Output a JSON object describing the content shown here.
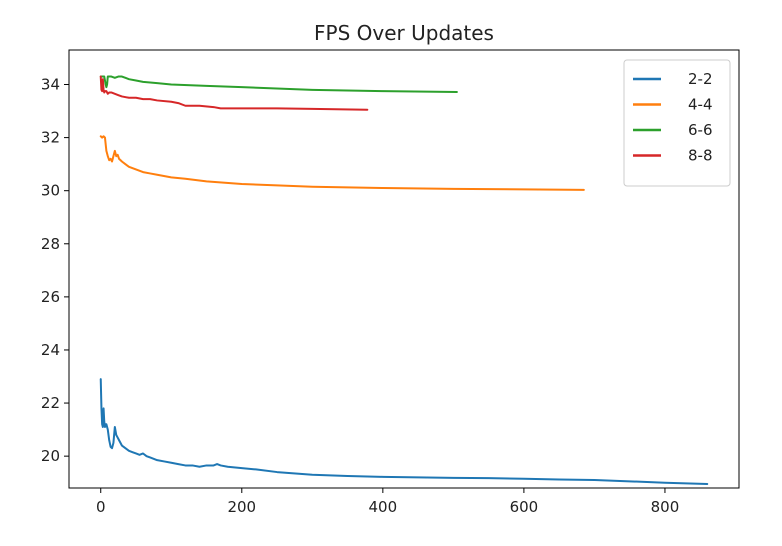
{
  "chart_data": {
    "type": "line",
    "title": "FPS Over Updates",
    "xlabel": "",
    "ylabel": "",
    "xlim": [
      -45,
      905
    ],
    "ylim": [
      18.8,
      35.3
    ],
    "xticks": [
      0,
      200,
      400,
      600,
      800
    ],
    "yticks": [
      20,
      22,
      24,
      26,
      28,
      30,
      32,
      34
    ],
    "grid": false,
    "legend_position": "top-right",
    "series": [
      {
        "name": "2-2",
        "color": "#1f77b4",
        "x": [
          0,
          1,
          2,
          3,
          4,
          5,
          6,
          7,
          8,
          10,
          12,
          14,
          16,
          18,
          20,
          22,
          24,
          26,
          28,
          30,
          35,
          40,
          45,
          50,
          55,
          60,
          65,
          70,
          80,
          90,
          100,
          110,
          120,
          130,
          140,
          150,
          160,
          165,
          170,
          180,
          200,
          220,
          250,
          300,
          350,
          400,
          450,
          500,
          550,
          600,
          650,
          700,
          750,
          800,
          860
        ],
        "y": [
          22.9,
          21.8,
          21.2,
          21.1,
          21.8,
          21.3,
          21.1,
          21.2,
          21.2,
          21.0,
          20.6,
          20.35,
          20.3,
          20.5,
          21.1,
          20.8,
          20.7,
          20.6,
          20.5,
          20.4,
          20.3,
          20.2,
          20.15,
          20.1,
          20.05,
          20.1,
          20.0,
          19.95,
          19.85,
          19.8,
          19.75,
          19.7,
          19.65,
          19.65,
          19.6,
          19.65,
          19.65,
          19.7,
          19.65,
          19.6,
          19.55,
          19.5,
          19.4,
          19.3,
          19.25,
          19.22,
          19.2,
          19.18,
          19.17,
          19.15,
          19.12,
          19.1,
          19.05,
          19.0,
          18.95
        ]
      },
      {
        "name": "4-4",
        "color": "#ff7f0e",
        "x": [
          0,
          2,
          4,
          6,
          8,
          10,
          12,
          14,
          16,
          18,
          20,
          22,
          24,
          26,
          28,
          30,
          35,
          40,
          50,
          60,
          70,
          80,
          100,
          120,
          150,
          200,
          250,
          300,
          400,
          500,
          600,
          685
        ],
        "y": [
          32.05,
          32.0,
          32.05,
          32.0,
          31.5,
          31.3,
          31.15,
          31.2,
          31.1,
          31.3,
          31.5,
          31.3,
          31.35,
          31.2,
          31.15,
          31.1,
          31.0,
          30.9,
          30.8,
          30.7,
          30.65,
          30.6,
          30.5,
          30.45,
          30.35,
          30.25,
          30.2,
          30.15,
          30.1,
          30.07,
          30.05,
          30.03
        ]
      },
      {
        "name": "6-6",
        "color": "#2ca02c",
        "x": [
          0,
          3,
          5,
          7,
          8,
          9,
          10,
          12,
          15,
          20,
          25,
          30,
          35,
          40,
          50,
          60,
          80,
          100,
          150,
          200,
          300,
          400,
          505
        ],
        "y": [
          34.3,
          34.3,
          34.3,
          34.0,
          33.9,
          34.0,
          34.3,
          34.3,
          34.3,
          34.25,
          34.3,
          34.3,
          34.25,
          34.2,
          34.15,
          34.1,
          34.05,
          34.0,
          33.95,
          33.9,
          33.8,
          33.75,
          33.72
        ]
      },
      {
        "name": "8-8",
        "color": "#d62728",
        "x": [
          0,
          1,
          2,
          3,
          4,
          5,
          6,
          8,
          10,
          12,
          15,
          20,
          25,
          30,
          40,
          50,
          60,
          70,
          80,
          100,
          110,
          120,
          140,
          160,
          170,
          200,
          250,
          300,
          378
        ],
        "y": [
          34.3,
          33.8,
          33.75,
          34.2,
          33.8,
          33.7,
          33.75,
          33.75,
          33.65,
          33.7,
          33.7,
          33.65,
          33.6,
          33.55,
          33.5,
          33.5,
          33.45,
          33.45,
          33.4,
          33.35,
          33.3,
          33.2,
          33.2,
          33.15,
          33.1,
          33.1,
          33.1,
          33.08,
          33.05
        ]
      }
    ]
  }
}
